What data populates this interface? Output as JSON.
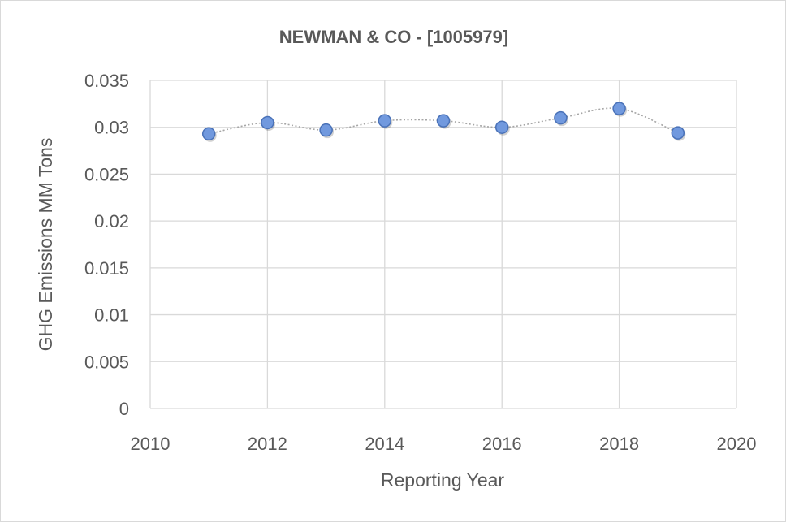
{
  "chart_data": {
    "type": "scatter",
    "title": "NEWMAN & CO - [1005979]",
    "xlabel": "Reporting Year",
    "ylabel": "GHG Emissions MM Tons",
    "xlim": [
      2010,
      2020
    ],
    "ylim": [
      0,
      0.035
    ],
    "x_ticks": [
      "2010",
      "2012",
      "2014",
      "2016",
      "2018",
      "2020"
    ],
    "y_ticks": [
      "0",
      "0.005",
      "0.01",
      "0.015",
      "0.02",
      "0.025",
      "0.03",
      "0.035"
    ],
    "grid": true,
    "legend": "none",
    "series": [
      {
        "x": [
          2011,
          2012,
          2013,
          2014,
          2015,
          2016,
          2017,
          2018,
          2019
        ],
        "y": [
          0.0293,
          0.0305,
          0.0297,
          0.0307,
          0.0307,
          0.03,
          0.031,
          0.032,
          0.0294
        ],
        "marker_color": "#7199de",
        "marker_edge": "#4a72b8",
        "line_color": "#a6a6a6",
        "line_style": "dotted-smooth"
      }
    ]
  }
}
